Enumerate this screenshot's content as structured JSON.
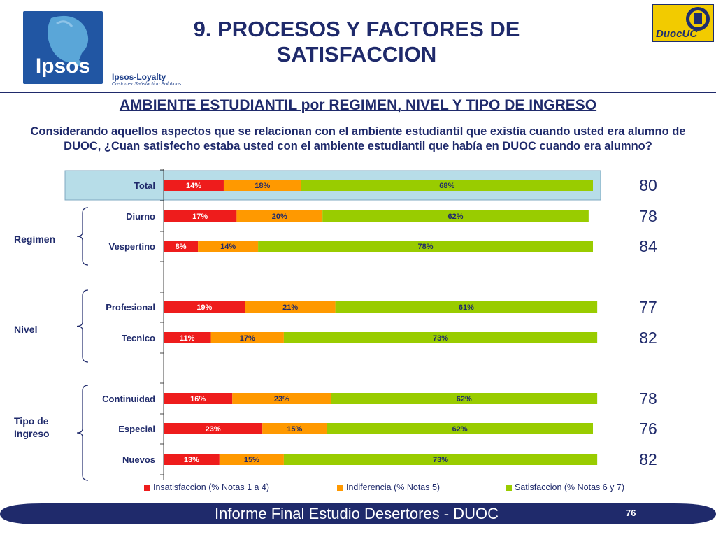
{
  "header": {
    "logo_left_text": "Ipsos",
    "loyalty_text": "Ipsos-Loyalty",
    "loyalty_sub": "Customer Satisfaction Solutions",
    "logo_right_text": "DuocUC",
    "title_line1": "9. PROCESOS Y FACTORES DE",
    "title_line2": "SATISFACCION"
  },
  "subtitle": "AMBIENTE ESTUDIANTIL por REGIMEN, NIVEL Y TIPO DE INGRESO",
  "question": "Considerando aquellos aspectos que se relacionan con el ambiente estudiantil que existía cuando usted era alumno de DUOC, ¿Cuan satisfecho estaba usted con el ambiente estudiantil que había en DUOC cuando era alumno?",
  "groups": {
    "regimen": "Regimen",
    "nivel": "Nivel",
    "tipo_line1": "Tipo de",
    "tipo_line2": "Ingreso"
  },
  "colors": {
    "insatisfaccion": "#ee1c1c",
    "indiferencia": "#ff9900",
    "satisfaccion": "#99cc00",
    "title": "#1f2a6b",
    "highlight": "#b7dde8"
  },
  "chart_data": {
    "type": "bar",
    "orientation": "horizontal",
    "stacked": true,
    "xlim": [
      0,
      100
    ],
    "categories": [
      "Total",
      "Diurno",
      "Vespertino",
      "Profesional",
      "Tecnico",
      "Continuidad",
      "Especial",
      "Nuevos"
    ],
    "series": [
      {
        "name": "Insatisfaccion (% Notas 1 a 4)",
        "values": [
          14,
          17,
          8,
          19,
          11,
          16,
          23,
          13
        ],
        "labels": [
          "14%",
          "17%",
          "8%",
          "19%",
          "11%",
          "16%",
          "23%",
          "13%"
        ]
      },
      {
        "name": "Indiferencia (% Notas 5)",
        "values": [
          18,
          20,
          14,
          21,
          17,
          23,
          15,
          15
        ],
        "labels": [
          "18%",
          "20%",
          "14%",
          "21%",
          "17%",
          "23%",
          "15%",
          "15%"
        ]
      },
      {
        "name": "Satisfaccion (% Notas 6 y 7)",
        "values": [
          68,
          62,
          78,
          61,
          73,
          62,
          62,
          73
        ],
        "labels": [
          "68%",
          "62%",
          "78%",
          "61%",
          "73%",
          "62%",
          "62%",
          "73%"
        ]
      }
    ],
    "scores": [
      "80",
      "78",
      "84",
      "77",
      "82",
      "78",
      "76",
      "82"
    ],
    "highlighted_category": "Total",
    "legend_position": "bottom"
  },
  "footer": {
    "text": "Informe Final Estudio Desertores - DUOC",
    "page": "76"
  }
}
